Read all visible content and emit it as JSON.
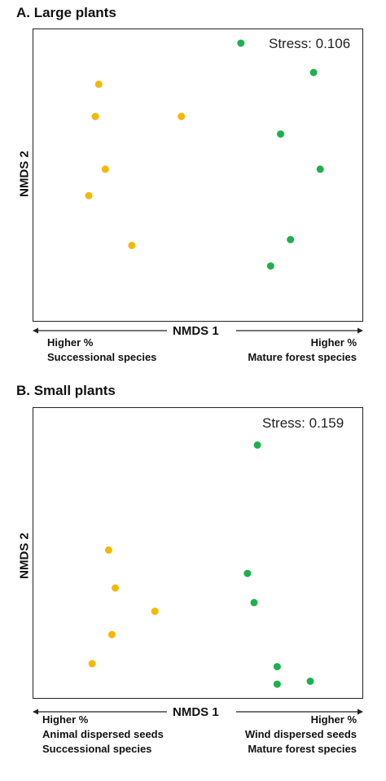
{
  "chart_data": [
    {
      "type": "scatter",
      "title": "A. Large plants",
      "annotation": "Stress: 0.106",
      "xlabel": "NMDS 1",
      "ylabel": "NMDS 2",
      "grid": false,
      "x_left_note": [
        "Higher %",
        "Successional species"
      ],
      "x_right_note": [
        "Higher %",
        "Mature forest species"
      ],
      "colors": {
        "successional": "#f5b800",
        "mature": "#1db14b"
      },
      "series": [
        {
          "color_key": "successional",
          "points": [
            [
              0.2,
              0.81
            ],
            [
              0.19,
              0.7
            ],
            [
              0.22,
              0.52
            ],
            [
              0.17,
              0.43
            ],
            [
              0.3,
              0.26
            ],
            [
              0.45,
              0.7
            ]
          ]
        },
        {
          "color_key": "mature",
          "points": [
            [
              0.63,
              0.95
            ],
            [
              0.85,
              0.85
            ],
            [
              0.75,
              0.64
            ],
            [
              0.87,
              0.52
            ],
            [
              0.78,
              0.28
            ],
            [
              0.72,
              0.19
            ]
          ]
        }
      ]
    },
    {
      "type": "scatter",
      "title": "B.  Small plants",
      "annotation": "Stress: 0.159",
      "xlabel": "NMDS 1",
      "ylabel": "NMDS 2",
      "grid": false,
      "x_left_note": [
        "Higher %",
        "Animal dispersed seeds",
        "Successional species"
      ],
      "x_right_note": [
        "Higher %",
        "Wind dispersed seeds",
        "Mature forest species"
      ],
      "colors": {
        "successional": "#f5b800",
        "mature": "#1db14b"
      },
      "series": [
        {
          "color_key": "successional",
          "points": [
            [
              0.23,
              0.51
            ],
            [
              0.25,
              0.38
            ],
            [
              0.37,
              0.3
            ],
            [
              0.24,
              0.22
            ],
            [
              0.18,
              0.12
            ]
          ]
        },
        {
          "color_key": "mature",
          "points": [
            [
              0.68,
              0.87
            ],
            [
              0.65,
              0.43
            ],
            [
              0.67,
              0.33
            ],
            [
              0.74,
              0.11
            ],
            [
              0.74,
              0.05
            ],
            [
              0.84,
              0.06
            ]
          ]
        }
      ]
    }
  ]
}
